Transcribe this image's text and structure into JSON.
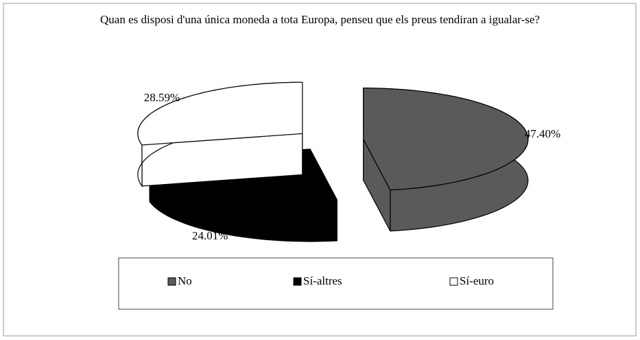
{
  "chart_data": {
    "type": "pie3d",
    "title": "Quan es disposi d'una única moneda a tota Europa, penseu que els preus tendiran a igualar-se?",
    "categories": [
      "No",
      "Sí-altres",
      "Sí-euro"
    ],
    "values": [
      47.4,
      24.01,
      28.59
    ],
    "value_labels": [
      "47.40%",
      "24.01%",
      "28.59%"
    ],
    "colors": [
      "#5a5a5a",
      "#000000",
      "#ffffff"
    ],
    "legend": "bottom"
  }
}
